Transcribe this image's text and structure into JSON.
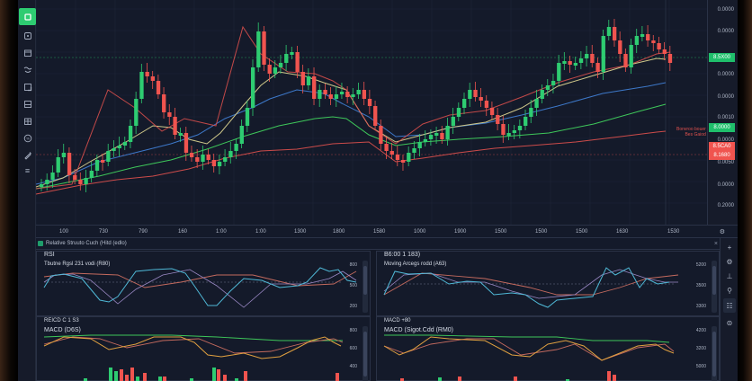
{
  "toolbar": {
    "items": [
      {
        "name": "chart-type",
        "icon": "square-icon",
        "active": true
      },
      {
        "name": "crosshair",
        "icon": "crosshair-icon"
      },
      {
        "name": "calendar",
        "icon": "calendar-icon"
      },
      {
        "name": "brush",
        "icon": "brush-icon"
      },
      {
        "name": "measure",
        "icon": "measure-icon"
      },
      {
        "name": "rectangle",
        "icon": "rectangle-icon"
      },
      {
        "name": "frame",
        "icon": "frame-icon"
      },
      {
        "name": "percent",
        "icon": "percent-icon"
      },
      {
        "name": "pencil",
        "icon": "pencil-icon"
      },
      {
        "name": "settings",
        "icon": "list-icon",
        "glyph": "≡"
      }
    ]
  },
  "price_axis": {
    "labels": [
      "0.0000",
      "0.0000",
      "0.0000",
      "0.0000",
      "0.0000",
      "0.0010",
      "0.0000",
      "0.0050",
      "0.0000",
      "0.2000"
    ],
    "current_tag": {
      "value": "8.5X00",
      "color": "#1fbf6b"
    },
    "green_tag": {
      "value": "8.0000",
      "color": "#1fbf6b"
    },
    "red_tags": [
      {
        "value": "8.5CA0",
        "color": "#f0544f"
      },
      {
        "value": "8.1680",
        "color": "#f0544f"
      }
    ],
    "annotation": [
      "Bonvroo bouer",
      "Bes Gaiod"
    ]
  },
  "time_axis": {
    "labels": [
      "100",
      "730",
      "790",
      "160",
      "1:00",
      "1:00",
      "1300",
      "1800",
      "1580",
      "1000",
      "1900",
      "1500",
      "1500",
      "1500",
      "1500",
      "1630",
      "1530"
    ],
    "gear": "⚙"
  },
  "indicator_header": {
    "title": "Relative Struuto Cuch (Hitd (edlo)",
    "close": "×"
  },
  "panes": {
    "rsi": {
      "name": "RSI",
      "subtitle": "Tbutne Rgsl 231 vodi (R80)",
      "scale": [
        "800",
        "500",
        "200"
      ]
    },
    "ma": {
      "name": "B6:00 1 183)",
      "subtitle": "Moving Arcegs rodd (A63)",
      "scale": [
        "5200",
        "3500",
        "3300"
      ]
    },
    "macd_left": {
      "name": "REICD C 1 S3",
      "subtitle": "MACD (D6S)",
      "scale": [
        "800",
        "600",
        "400"
      ]
    },
    "macd_right": {
      "name": "MACD +80",
      "subtitle": "MACD (Sigot.Cdd (RM0)",
      "scale": [
        "4200",
        "3200",
        "5000"
      ]
    }
  },
  "right_tools": {
    "items": [
      {
        "name": "add",
        "glyph": "+"
      },
      {
        "name": "chart-settings",
        "glyph": "⚙"
      },
      {
        "name": "alert",
        "glyph": "⊥"
      },
      {
        "name": "zoom",
        "glyph": "⚲"
      },
      {
        "name": "object-tree",
        "glyph": "☷"
      },
      {
        "name": "screenshot",
        "glyph": "⊜"
      }
    ]
  },
  "colors": {
    "up": "#2ecc71",
    "down": "#f0544f",
    "ma_yellow": "#cfc88a",
    "ma_blue": "#3d78c9",
    "ma_green": "#3ec75a",
    "ma_red": "#e0514e",
    "rsi_cyan": "#4fb8d6",
    "macd_orange": "#e0a040"
  }
}
